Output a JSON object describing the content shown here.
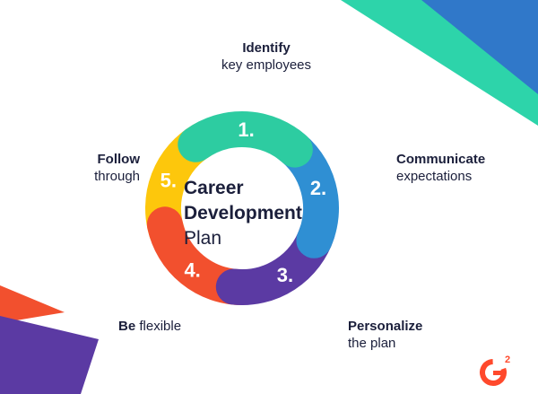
{
  "diagram": {
    "title_line1": "Career",
    "title_line2": "Development",
    "title_line3": "Plan",
    "steps": [
      {
        "number": "1.",
        "bold": "Identify",
        "light": "key employees",
        "color": "#2dcca1"
      },
      {
        "number": "2.",
        "bold": "Communicate",
        "light": "expectations",
        "color": "#2f8fd3"
      },
      {
        "number": "3.",
        "bold": "Personalize",
        "light": "the plan",
        "color": "#5b3aa3"
      },
      {
        "number": "4.",
        "bold": "Be",
        "light": "flexible",
        "color": "#f2502e"
      },
      {
        "number": "5.",
        "bold": "Follow",
        "light": "through",
        "color": "#fdc70c"
      }
    ]
  },
  "logo": {
    "letter": "G",
    "superscript": "2",
    "color": "#ff492c"
  },
  "decor_colors": {
    "teal": "#2dd4aa",
    "blue": "#3078c9",
    "red": "#f2502e",
    "purple": "#5b3aa3"
  }
}
